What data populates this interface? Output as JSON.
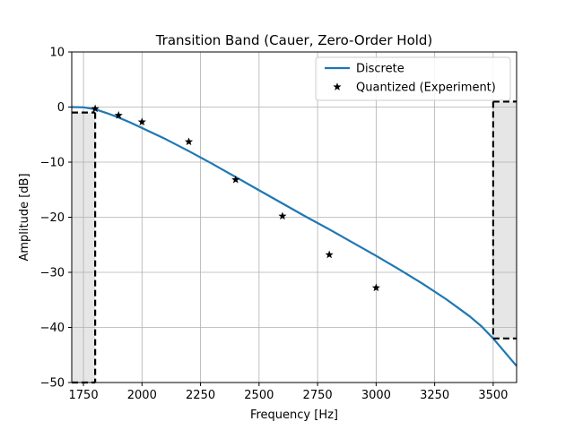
{
  "chart_data": {
    "type": "line",
    "title": "Transition Band (Cauer, Zero-Order Hold)",
    "xlabel": "Frequency [Hz]",
    "ylabel": "Amplitude [dB]",
    "xlim": [
      1700,
      3600
    ],
    "ylim": [
      -50,
      10
    ],
    "xticks": [
      1750,
      2000,
      2250,
      2500,
      2750,
      3000,
      3250,
      3500
    ],
    "yticks": [
      10,
      0,
      -10,
      -20,
      -30,
      -40,
      -50
    ],
    "grid": true,
    "legend_position": "top-right",
    "series": [
      {
        "name": "Discrete",
        "type": "line",
        "color": "#1f77b4",
        "x": [
          1700,
          1750,
          1800,
          1850,
          1900,
          1950,
          2000,
          2100,
          2200,
          2300,
          2400,
          2500,
          2600,
          2700,
          2800,
          2900,
          3000,
          3100,
          3200,
          3300,
          3400,
          3450,
          3500,
          3550,
          3600
        ],
        "y": [
          0,
          -0.05,
          -0.4,
          -1.1,
          -1.9,
          -2.8,
          -3.8,
          -5.8,
          -8.0,
          -10.3,
          -12.7,
          -15.1,
          -17.5,
          -19.9,
          -22.2,
          -24.6,
          -27.0,
          -29.5,
          -32.1,
          -34.9,
          -38.0,
          -39.8,
          -42.0,
          -44.5,
          -47.0
        ]
      },
      {
        "name": "Quantized (Experiment)",
        "type": "scatter",
        "marker": "star",
        "color": "#000000",
        "x": [
          1800,
          1900,
          2000,
          2200,
          2400,
          2600,
          2800,
          3000
        ],
        "y": [
          -0.3,
          -1.5,
          -2.7,
          -6.3,
          -13.2,
          -19.8,
          -26.8,
          -32.8
        ]
      }
    ],
    "spec_regions": [
      {
        "x_from": 1700,
        "x_to": 1800,
        "y_top": -1,
        "y_bottom": -50,
        "fill": "#e6e6e6",
        "boundary": "dashed"
      },
      {
        "x_from": 3500,
        "x_to": 3600,
        "y_top": 1,
        "y_bottom": -42,
        "fill": "#e6e6e6",
        "boundary": "dashed"
      }
    ]
  }
}
